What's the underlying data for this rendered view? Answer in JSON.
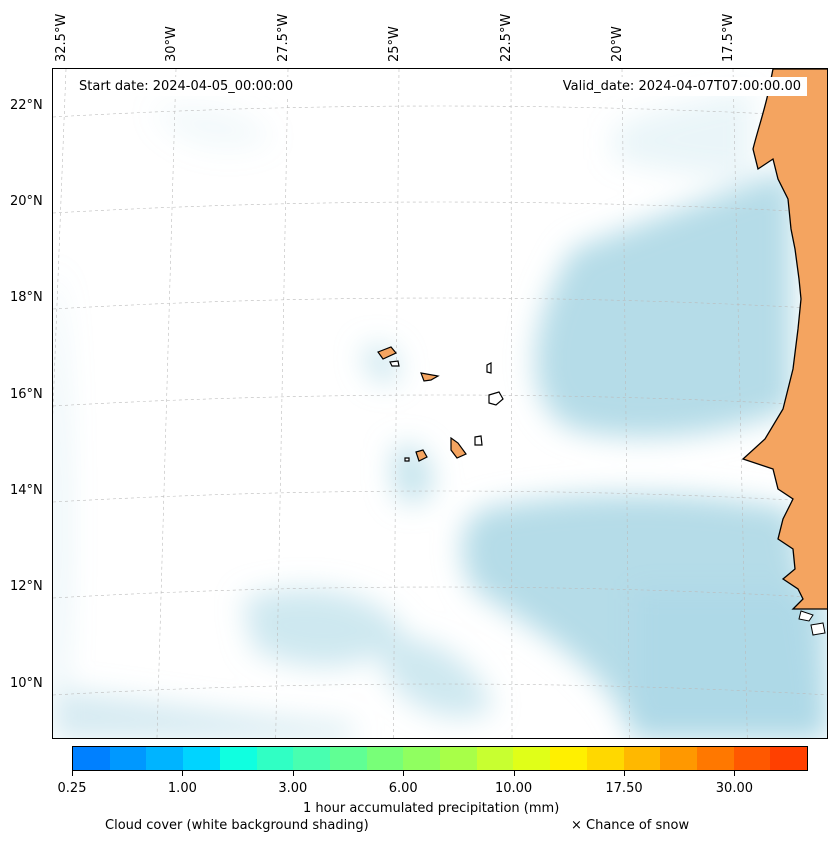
{
  "map": {
    "start_date": "Start date: 2024-04-05_00:00:00",
    "valid_date": "Valid_date: 2024-04-07T07:00:00.00",
    "lon_labels": [
      "32.5°W",
      "30°W",
      "27.5°W",
      "25°W",
      "22.5°W",
      "20°W",
      "17.5°W"
    ],
    "lat_labels": [
      "22°N",
      "20°N",
      "18°N",
      "16°N",
      "14°N",
      "12°N",
      "10°N"
    ],
    "land_color": "#f4a460",
    "cloud_color": "#add8e6"
  },
  "colorbar": {
    "colors": [
      "#0080ff",
      "#0098ff",
      "#00b4ff",
      "#00d4ff",
      "#10ffe0",
      "#30ffc4",
      "#48ffb0",
      "#60ff94",
      "#78ff78",
      "#90ff60",
      "#a8ff48",
      "#c8ff30",
      "#e0ff18",
      "#fff000",
      "#ffd800",
      "#ffb800",
      "#ff9800",
      "#ff7800",
      "#ff5800",
      "#ff4000"
    ],
    "tick_labels": [
      "0.25",
      "1.00",
      "3.00",
      "6.00",
      "10.00",
      "17.50",
      "30.00"
    ],
    "label": "1 hour accumulated precipitation (mm)"
  },
  "legend": {
    "cloud_cover": "Cloud cover (white background shading)",
    "snow": "× Chance of snow"
  }
}
